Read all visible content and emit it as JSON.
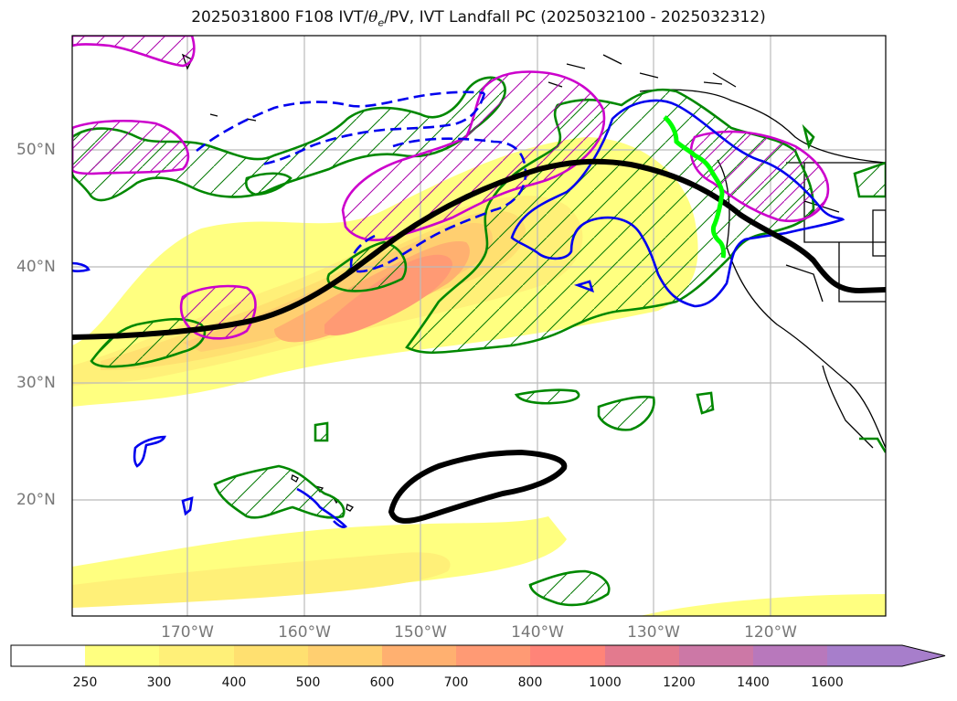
{
  "title": {
    "prefix": "2025031800 F108 IVT/",
    "theta": "θ",
    "theta_sub": "e",
    "suffix": "/PV, IVT Landfall PC (2025032100 - 2025032312)"
  },
  "lat_labels": [
    "50°N",
    "40°N",
    "30°N",
    "20°N"
  ],
  "lon_labels": [
    "170°W",
    "160°W",
    "150°W",
    "140°W",
    "130°W",
    "120°W"
  ],
  "colorbar": {
    "ticks": [
      "250",
      "300",
      "400",
      "500",
      "600",
      "700",
      "800",
      "1000",
      "1200",
      "1400",
      "1600"
    ],
    "colors": [
      "#ffffff",
      "#ffff80",
      "#fff078",
      "#ffe070",
      "#ffcf70",
      "#ffb070",
      "#ff9a74",
      "#ff8478",
      "#e37a8e",
      "#cc78a6",
      "#b878bc",
      "#a77ecb"
    ]
  },
  "contour_colors": {
    "jet": "#000000",
    "theta_e": "#0000ee",
    "pv": "#cc00cc",
    "landfall": "#008800",
    "landfall_highlight": "#00ff00"
  }
}
